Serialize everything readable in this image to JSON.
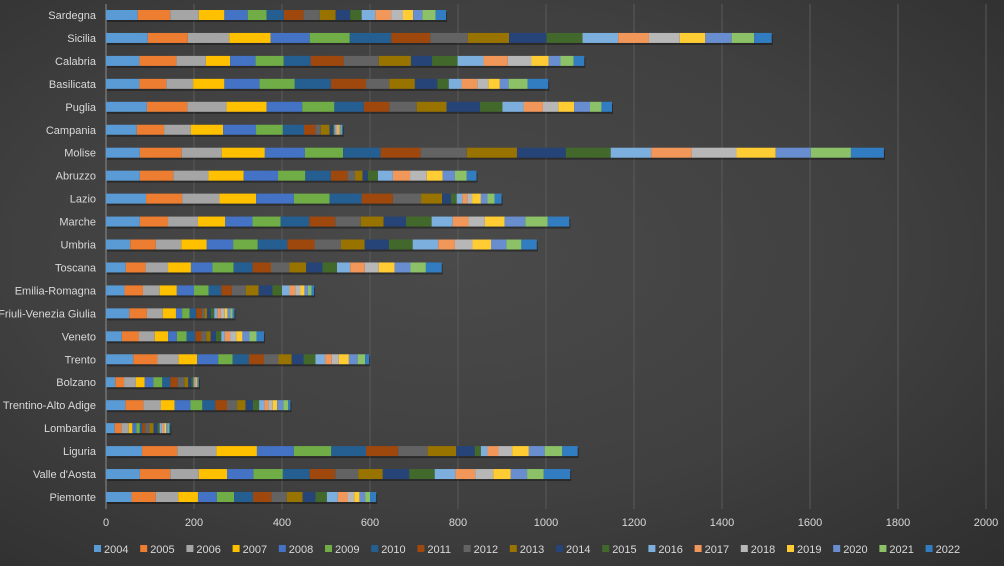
{
  "chart_data": {
    "type": "bar",
    "orientation": "horizontal",
    "stacked": true,
    "title": "",
    "xlabel": "",
    "ylabel": "",
    "xlim": [
      0,
      2000
    ],
    "xticks": [
      0,
      200,
      400,
      600,
      800,
      1000,
      1200,
      1400,
      1600,
      1800,
      2000
    ],
    "grid": true,
    "legend_position": "bottom",
    "categories": [
      "Sardegna",
      "Sicilia",
      "Calabria",
      "Basilicata",
      "Puglia",
      "Campania",
      "Molise",
      "Abruzzo",
      "Lazio",
      "Marche",
      "Umbria",
      "Toscana",
      "Emilia-Romagna",
      "Friuli-Venezia Giulia",
      "Veneto",
      "Trento",
      "Bolzano",
      "Trentino-Alto Adige",
      "Lombardia",
      "Liguria",
      "Valle d'Aosta",
      "Piemonte"
    ],
    "series_names": [
      "2004",
      "2005",
      "2006",
      "2007",
      "2008",
      "2009",
      "2010",
      "2011",
      "2012",
      "2013",
      "2014",
      "2015",
      "2016",
      "2017",
      "2018",
      "2019",
      "2020",
      "2021",
      "2022"
    ],
    "series_colors": [
      "#5B9BD5",
      "#ED7D31",
      "#A5A5A5",
      "#FFC000",
      "#4472C4",
      "#70AD47",
      "#255E91",
      "#9E480E",
      "#636363",
      "#997300",
      "#264478",
      "#43682B",
      "#7CAFDD",
      "#F1975A",
      "#B7B7B7",
      "#FFCD33",
      "#698ED0",
      "#8CC168",
      "#327DC2"
    ],
    "values_by_category": {
      "Sardegna": [
        72,
        74,
        65,
        58,
        53,
        43,
        39,
        45,
        37,
        36,
        33,
        26,
        31,
        36,
        27,
        23,
        21,
        30,
        24
      ],
      "Sicilia": [
        95,
        91,
        94,
        94,
        89,
        91,
        94,
        89,
        85,
        94,
        85,
        82,
        81,
        70,
        70,
        58,
        60,
        51,
        40
      ],
      "Calabria": [
        76,
        84,
        67,
        55,
        58,
        64,
        61,
        75,
        80,
        73,
        48,
        58,
        59,
        55,
        54,
        39,
        27,
        30,
        24
      ],
      "Basilicata": [
        76,
        61,
        61,
        71,
        80,
        80,
        82,
        80,
        53,
        58,
        51,
        26,
        29,
        36,
        25,
        26,
        20,
        43,
        47
      ],
      "Puglia": [
        93,
        92,
        89,
        91,
        81,
        73,
        67,
        58,
        62,
        68,
        76,
        51,
        48,
        44,
        35,
        36,
        36,
        26,
        24
      ],
      "Campania": [
        70,
        62,
        61,
        73,
        75,
        61,
        48,
        26,
        12,
        20,
        8,
        3,
        3,
        3,
        3,
        3,
        3,
        2,
        2
      ],
      "Molise": [
        77,
        95,
        91,
        98,
        91,
        87,
        85,
        91,
        105,
        114,
        111,
        102,
        92,
        92,
        102,
        89,
        80,
        91,
        75
      ],
      "Abruzzo": [
        77,
        76,
        80,
        80,
        78,
        62,
        58,
        38,
        17,
        17,
        12,
        23,
        34,
        39,
        38,
        36,
        28,
        27,
        22
      ],
      "Lazio": [
        91,
        82,
        85,
        83,
        86,
        81,
        73,
        71,
        64,
        48,
        20,
        13,
        13,
        11,
        11,
        20,
        15,
        16,
        16
      ],
      "Marche": [
        77,
        64,
        68,
        62,
        62,
        64,
        65,
        59,
        58,
        52,
        51,
        58,
        48,
        36,
        37,
        45,
        47,
        51,
        49
      ],
      "Umbria": [
        55,
        58,
        58,
        58,
        60,
        56,
        67,
        62,
        60,
        54,
        55,
        54,
        58,
        38,
        40,
        42,
        35,
        34,
        35
      ],
      "Toscana": [
        45,
        45,
        51,
        52,
        49,
        48,
        43,
        42,
        42,
        38,
        37,
        33,
        30,
        33,
        32,
        36,
        36,
        35,
        36
      ],
      "Emilia-Romagna": [
        42,
        42,
        38,
        39,
        39,
        33,
        29,
        24,
        32,
        29,
        31,
        22,
        17,
        13,
        12,
        9,
        8,
        8,
        6
      ],
      "Friuli-Venezia Giulia": [
        53,
        40,
        36,
        30,
        14,
        17,
        15,
        13,
        6,
        6,
        8,
        8,
        7,
        8,
        9,
        6,
        7,
        5,
        4
      ],
      "Veneto": [
        36,
        39,
        36,
        30,
        20,
        22,
        20,
        14,
        11,
        10,
        12,
        12,
        8,
        12,
        14,
        14,
        16,
        16,
        17
      ],
      "Trento": [
        62,
        55,
        48,
        42,
        48,
        33,
        37,
        34,
        33,
        30,
        27,
        27,
        22,
        15,
        16,
        23,
        20,
        17,
        9
      ],
      "Bolzano": [
        21,
        20,
        27,
        20,
        20,
        20,
        18,
        17,
        15,
        9,
        7,
        5,
        2,
        2,
        2,
        2,
        2,
        1,
        1
      ],
      "Trentino-Alto Adige": [
        44,
        41,
        40,
        31,
        36,
        27,
        29,
        27,
        23,
        19,
        17,
        14,
        12,
        9,
        10,
        10,
        14,
        11,
        5
      ],
      "Lombardia": [
        20,
        15,
        17,
        8,
        9,
        8,
        5,
        7,
        10,
        9,
        9,
        5,
        5,
        4,
        3,
        3,
        3,
        3,
        3
      ],
      "Liguria": [
        82,
        80,
        89,
        92,
        84,
        85,
        79,
        73,
        67,
        65,
        42,
        14,
        15,
        25,
        31,
        38,
        36,
        40,
        35
      ],
      "Valle d'Aosta": [
        77,
        69,
        65,
        64,
        60,
        67,
        61,
        58,
        52,
        56,
        60,
        58,
        47,
        45,
        41,
        40,
        37,
        38,
        60
      ],
      "Piemonte": [
        58,
        55,
        51,
        45,
        43,
        39,
        43,
        42,
        35,
        36,
        29,
        26,
        25,
        22,
        15,
        12,
        13,
        11,
        14
      ]
    }
  }
}
